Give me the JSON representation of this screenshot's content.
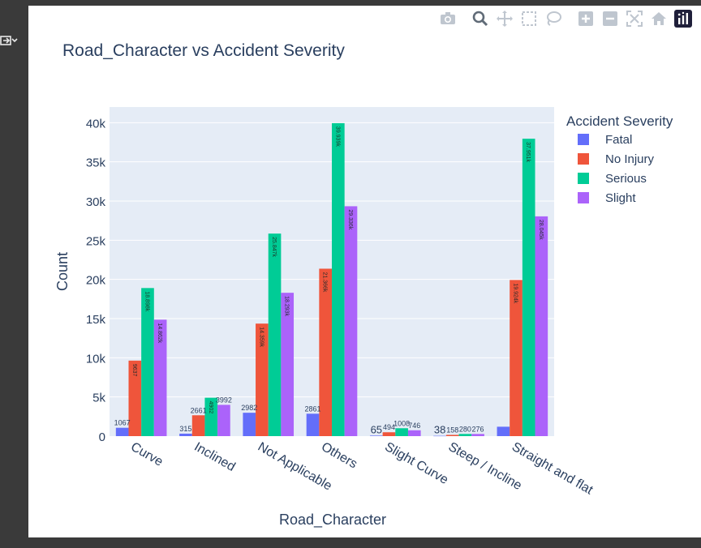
{
  "chart_data": {
    "type": "bar",
    "title": "Road_Character vs Accident Severity",
    "xlabel": "Road_Character",
    "ylabel": "Count",
    "ylim": [
      0,
      42000
    ],
    "yticks": [
      0,
      5000,
      10000,
      15000,
      20000,
      25000,
      30000,
      35000,
      40000
    ],
    "ytick_labels": [
      "0",
      "5k",
      "10k",
      "15k",
      "20k",
      "25k",
      "30k",
      "35k",
      "40k"
    ],
    "grid": true,
    "legend_title": "Accident Severity",
    "legend_position": "top-right",
    "categories": [
      "Curve",
      "Inclined",
      "Not Applicable",
      "Others",
      "Slight Curve",
      "Steep / Incline",
      "Straight and flat"
    ],
    "series": [
      {
        "name": "Fatal",
        "color": "#636efa",
        "values": [
          1067,
          315,
          2982,
          2861,
          65,
          38,
          1200
        ],
        "labels": [
          "1067",
          "315",
          "2982",
          "2861",
          "65",
          "38",
          ""
        ]
      },
      {
        "name": "No Injury",
        "color": "#ef553b",
        "values": [
          9637,
          2661,
          14359,
          21366,
          494,
          158,
          19924
        ],
        "labels": [
          "9637",
          "2661",
          "14.359k",
          "21.366k",
          "494",
          "158",
          "19.924k"
        ]
      },
      {
        "name": "Serious",
        "color": "#00cc96",
        "values": [
          18898,
          4902,
          25847,
          39939,
          1008,
          280,
          37951
        ],
        "labels": [
          "18.898k",
          "4902",
          "25.847k",
          "39.939k",
          "1008",
          "280",
          "37.951k"
        ]
      },
      {
        "name": "Slight",
        "color": "#ab63fa",
        "values": [
          14862,
          3992,
          18293,
          29336,
          746,
          276,
          28045
        ],
        "labels": [
          "14.862k",
          "3992",
          "18.293k",
          "29.336k",
          "746",
          "276",
          "28.045k"
        ]
      }
    ]
  },
  "toolbar": {
    "icons": [
      "camera-icon",
      "zoom-icon",
      "pan-icon",
      "box-select-icon",
      "lasso-select-icon",
      "zoom-in-icon",
      "zoom-out-icon",
      "autoscale-icon",
      "reset-axes-icon",
      "plotly-logo-icon"
    ]
  }
}
